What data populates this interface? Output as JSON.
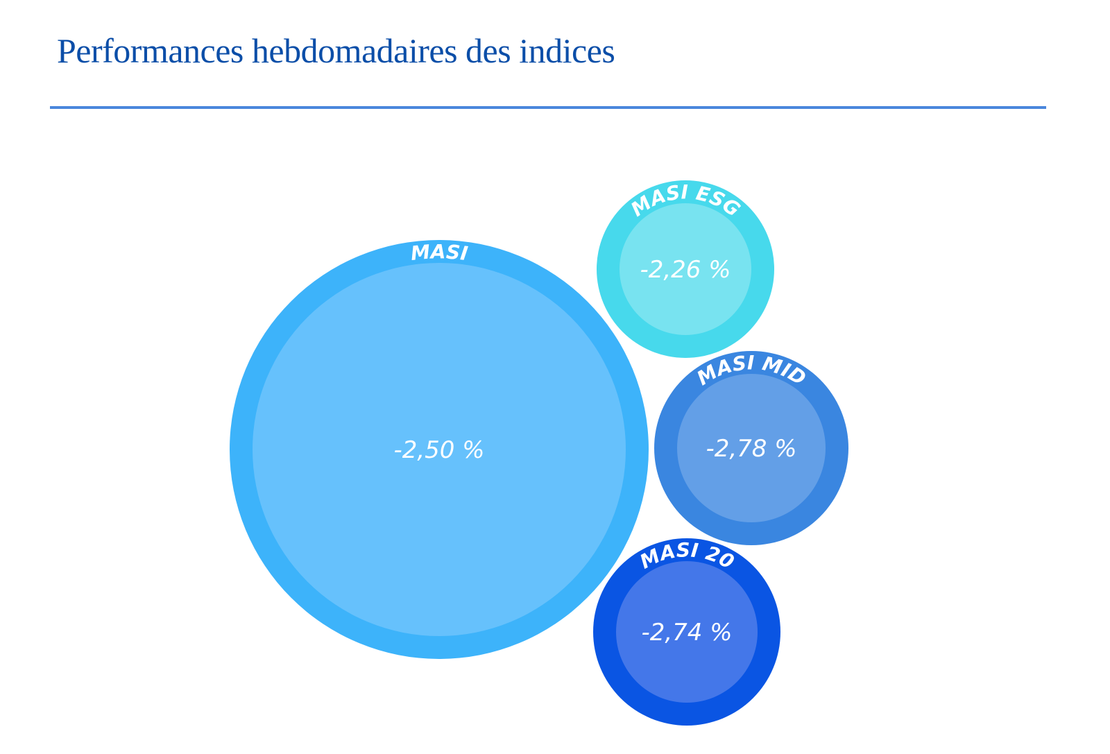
{
  "page": {
    "title": "Performances hebdomadaires des indices"
  },
  "chart_data": {
    "type": "bubble",
    "title": "Performances hebdomadaires des indices",
    "unit": "%",
    "series": [
      {
        "name": "MASI",
        "value": -2.5,
        "value_label": "-2,50 %",
        "color_outer": "#3db3fa",
        "color_inner": "#66c1fc"
      },
      {
        "name": "MASI ESG",
        "value": -2.26,
        "value_label": "-2,26 %",
        "color_outer": "#47d9ec",
        "color_inner": "#78e3f0"
      },
      {
        "name": "MASI MID",
        "value": -2.78,
        "value_label": "-2,78 %",
        "color_outer": "#3a86e0",
        "color_inner": "#639fe7"
      },
      {
        "name": "MASI 20",
        "value": -2.74,
        "value_label": "-2,74 %",
        "color_outer": "#0a55e3",
        "color_inner": "#4477e9"
      }
    ]
  }
}
